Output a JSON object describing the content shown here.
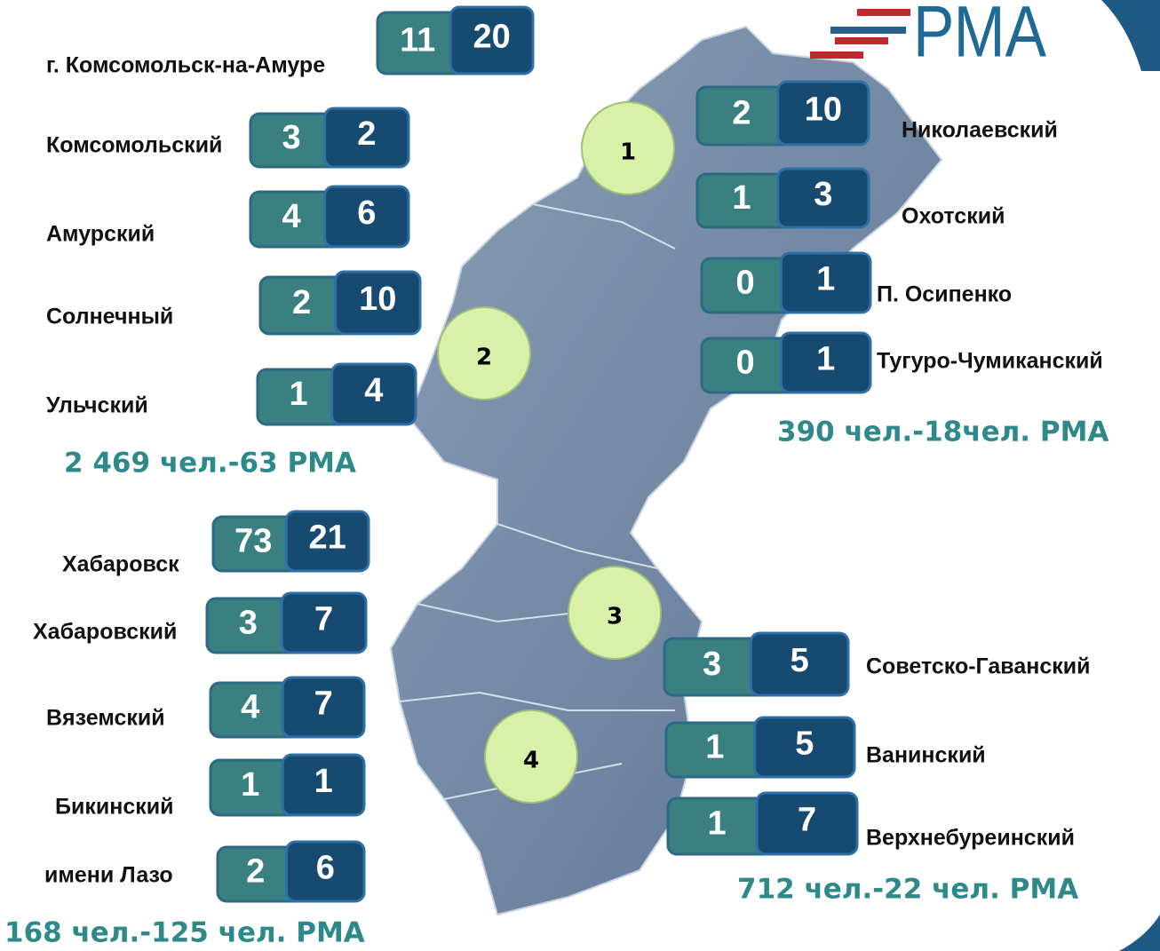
{
  "logo": "РМА",
  "districts": [
    {
      "name": "г. Комсомольск-на-Амуре",
      "a": 11,
      "b": 20
    },
    {
      "name": "Комсомольский",
      "a": 3,
      "b": 2
    },
    {
      "name": "Амурский",
      "a": 4,
      "b": 6
    },
    {
      "name": "Солнечный",
      "a": 2,
      "b": 10
    },
    {
      "name": "Ульчский",
      "a": 1,
      "b": 4
    },
    {
      "name": "Николаевский",
      "a": 2,
      "b": 10
    },
    {
      "name": "Охотский",
      "a": 1,
      "b": 3
    },
    {
      "name": "П. Осипенко",
      "a": 0,
      "b": 1
    },
    {
      "name": "Тугуро-Чумиканский",
      "a": 0,
      "b": 1
    },
    {
      "name": "Хабаровск",
      "a": 73,
      "b": 21
    },
    {
      "name": "Хабаровский",
      "a": 3,
      "b": 7
    },
    {
      "name": "Вяземский",
      "a": 4,
      "b": 7
    },
    {
      "name": "Бикинский",
      "a": 1,
      "b": 1
    },
    {
      "name": "имени Лазо",
      "a": 2,
      "b": 6
    },
    {
      "name": "Советско-Гаванский",
      "a": 3,
      "b": 5
    },
    {
      "name": "Ванинский",
      "a": 1,
      "b": 5
    },
    {
      "name": "Верхнебуреинский",
      "a": 1,
      "b": 7
    }
  ],
  "zones": [
    "1",
    "2",
    "3",
    "4"
  ],
  "totals": [
    "2 469 чел.-63 РМА",
    "390 чел.-18чел. РМА",
    "712 чел.-22 чел. РМА",
    "168 чел.-125 чел. РМА"
  ]
}
